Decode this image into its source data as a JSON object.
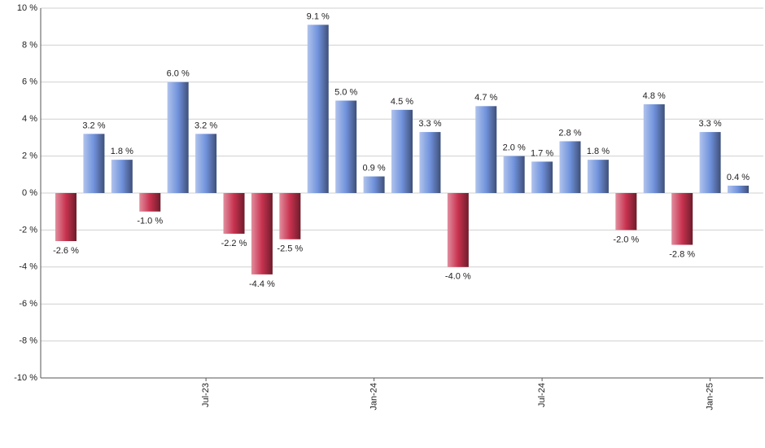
{
  "chart_data": {
    "type": "bar",
    "categories": [
      null,
      null,
      null,
      null,
      null,
      "Jul-23",
      null,
      null,
      null,
      null,
      null,
      "Jan-24",
      null,
      null,
      null,
      null,
      null,
      "Jul-24",
      null,
      null,
      null,
      null,
      null,
      "Jan-25",
      null
    ],
    "values": [
      -2.6,
      3.2,
      1.8,
      -1.0,
      6.0,
      3.2,
      -2.2,
      -4.4,
      -2.5,
      9.1,
      5.0,
      0.9,
      4.5,
      3.3,
      -4.0,
      4.7,
      2.0,
      1.7,
      2.8,
      1.8,
      -2.0,
      4.8,
      -2.8,
      3.3,
      0.4
    ],
    "value_labels": [
      "-2.6 %",
      "3.2 %",
      "1.8 %",
      "-1.0 %",
      "6.0 %",
      "3.2 %",
      "-2.2 %",
      "-4.4 %",
      "-2.5 %",
      "9.1 %",
      "5.0 %",
      "0.9 %",
      "4.5 %",
      "3.3 %",
      "-4.0 %",
      "4.7 %",
      "2.0 %",
      "1.7 %",
      "2.8 %",
      "1.8 %",
      "-2.0 %",
      "4.8 %",
      "-2.8 %",
      "3.3 %",
      "0.4 %"
    ],
    "positive_color": "#7092dc",
    "negative_color": "#c8324f",
    "ylim": [
      -10,
      10
    ],
    "yticks": [
      {
        "value": -10,
        "label": "-10 %"
      },
      {
        "value": -8,
        "label": "-8 %"
      },
      {
        "value": -6,
        "label": "-6 %"
      },
      {
        "value": -4,
        "label": "-4 %"
      },
      {
        "value": -2,
        "label": "-2 %"
      },
      {
        "value": 0,
        "label": "0 %"
      },
      {
        "value": 2,
        "label": "2 %"
      },
      {
        "value": 4,
        "label": "4 %"
      },
      {
        "value": 6,
        "label": "6 %"
      },
      {
        "value": 8,
        "label": "8 %"
      },
      {
        "value": 10,
        "label": "10 %"
      }
    ],
    "grid": true
  }
}
